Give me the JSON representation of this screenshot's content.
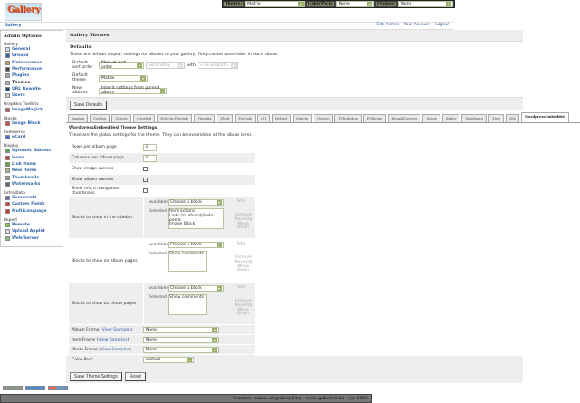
{
  "topbar": {
    "theme_label": "Theme:",
    "theme_value": "Matrix",
    "colorpack_label": "ColorPack:",
    "colorpack_value": "None",
    "frames_label": "Frames:",
    "frames_value": "None"
  },
  "logo": {
    "text": "Gallery"
  },
  "breadcrumb": "Gallery",
  "header_links": [
    "Site Admin",
    "Your Account",
    "Logout"
  ],
  "sidebar": {
    "title": "Admin Options",
    "groups": [
      {
        "label": "Gallery",
        "items": [
          "General",
          "Groups",
          "Maintenance",
          "Performance",
          "Plugins",
          "Themes",
          "URL Rewrite",
          "Users"
        ]
      },
      {
        "label": "Graphics Toolkits",
        "items": [
          "ImageMagick"
        ]
      },
      {
        "label": "Blocks",
        "items": [
          "Image Block"
        ]
      },
      {
        "label": "Commerce",
        "items": [
          "eCard"
        ]
      },
      {
        "label": "Display",
        "items": [
          "Dynamic Albums",
          "Icons",
          "Link Items",
          "New Items",
          "Thumbnails",
          "Watermarks"
        ]
      },
      {
        "label": "Extra Data",
        "items": [
          "Comments",
          "Custom Fields",
          "MultiLanguage"
        ]
      },
      {
        "label": "Import",
        "items": [
          "Remote",
          "Upload Applet",
          "Web/Server"
        ]
      }
    ]
  },
  "main": {
    "title": "Gallery Themes",
    "defaults": {
      "heading": "Defaults",
      "desc": "These are default display settings for albums in your gallery. They can be overridden in each album.",
      "sort_label": "Default sort order",
      "sort_value": "Manual sort order",
      "sort_dir": "Ascending",
      "with_label": "with",
      "with_value": "« no presort »",
      "theme_label": "Default theme",
      "theme_value": "Matrix",
      "new_albums_label": "New albums",
      "new_albums_value": "Inherit settings from parent album",
      "save_button": "Save Defaults"
    },
    "tabs": [
      "Ajaxian",
      "Carbon",
      "Classic",
      "Copyleft",
      "EclecticThreads",
      "Floatrix",
      "Fluid",
      "ForSale",
      "G1",
      "Hybrid",
      "Matrix",
      "Nature",
      "PGlightbox",
      "PGtheme",
      "RoundCorners",
      "Siriux",
      "Slider",
      "Splatbang",
      "Tree",
      "Tile",
      "WordpressEmbedded"
    ],
    "active_tab": "WordpressEmbedded",
    "theme_settings": {
      "heading": "WordpressEmbedded Theme Settings",
      "desc": "These are the global settings for the theme. They can be overridden at the album level.",
      "rows_label": "Rows per album page",
      "rows_value": "3",
      "cols_label": "Columns per album page",
      "cols_value": "3",
      "image_owners_label": "Show image owners",
      "image_owners": false,
      "album_owners_label": "Show album owners",
      "album_owners": true,
      "micro_nav_label": "Show micro navigation thumbnails",
      "micro_nav": false,
      "available_label": "Available",
      "selected_label": "Selected",
      "choose": "Choose a block",
      "add": "Add",
      "remove": "Remove",
      "move_up": "Move Up",
      "move_down": "Move Down",
      "sidebar_label": "Blocks to show in the sidebar",
      "sidebar_selected": [
        "Item actions",
        "Links to album/photo peers",
        "Image Block"
      ],
      "album_label": "Blocks to show on album pages",
      "album_selected": [
        "Show comments"
      ],
      "photo_label": "Blocks to show on photo pages",
      "photo_selected": [
        "Show comments"
      ],
      "view_samples": "View Samples",
      "album_frame_label": "Album Frame",
      "album_frame": "None",
      "item_frame_label": "Item Frame",
      "item_frame": "None",
      "photo_frame_label": "Photo Frame",
      "photo_frame": "None",
      "color_pack_label": "Color Pack",
      "color_pack": "embed",
      "save_button": "Save Theme Settings",
      "reset_button": "Reset"
    }
  },
  "footer": "Contact: admin at gallery2.hu - www.gallery2.hu - (c) 2006"
}
